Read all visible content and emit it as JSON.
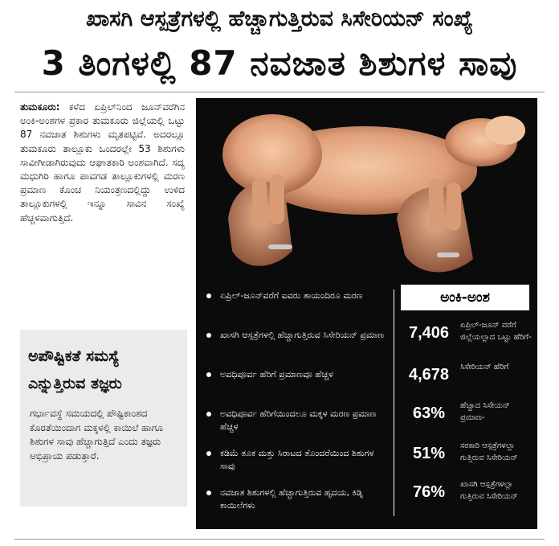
{
  "article": {
    "kicker": "ಖಾಸಗಿ ಆಸ್ಪತ್ರೆಗಳಲ್ಲಿ ಹೆಚ್ಚಾಗುತ್ತಿರುವ ಸಿಸೇರಿಯನ್ ಸಂಖ್ಯೆ",
    "headline": "3 ತಿಂಗಳಲ್ಲಿ 87 ನವಜಾತ ಶಿಶುಗಳ ಸಾವು",
    "dateline": "ತುಮಕೂರು:",
    "lead": "ಕಳೆದ ಏಪ್ರಿಲ್‌ನಿಂದ ಜೂನ್‌ವರೆಗಿನ ಅಂಕಿ-ಅಂಶಗಳ ಪ್ರಕಾರ ತುಮಕೂರು ಜಿಲ್ಲೆಯಲ್ಲಿ ಒಟ್ಟು 87 ನವಜಾತ ಶಿಶುಗಳು ಮೃತಪಟ್ಟಿವೆ. ಅದರಲ್ಲೂ ತುಮಕೂರು ತಾಲ್ಲೂಕು ಒಂದರಲ್ಲೇ 53 ಶಿಶುಗಳು ಸಾವೀಗೀಡಾಗಿರುವುದು ಆಘಾತಕಾರಿ ಅಂಶವಾಗಿದೆ. ಸದ್ಯ ಮಧುಗಿರಿ ಹಾಗೂ ಪಾವಗಡ ತಾಲ್ಲೂಕುಗಳಲ್ಲಿ ಮರಣ ಪ್ರಮಾಣ ಕೊಂಚ ನಿಯಂತ್ರಣದಲ್ಲಿದ್ದು ಉಳಿದ ತಾಲ್ಲೂಕುಗಳಲ್ಲಿ ಇನ್ನೂ ಸಾವಿನ ಸಂಖ್ಯೆ ಹೆಚ್ಚಳವಾಗುತ್ತಿದೆ."
  },
  "sidebar": {
    "title": "ಅಪೌಷ್ಟಿಕತೆ ಸಮಸ್ಯೆ ಎನ್ನುತ್ತಿರುವ ತಜ್ಞರು",
    "text": "ಗರ್ಭಾವಸ್ಥೆ ಸಮಯದಲ್ಲಿ ಪೌಷ್ಟಿಕಾಂಶದ ಕೊರತೆಯಿಂದಾಗ ಮಕ್ಕಳಲ್ಲಿ ಕಾಯಿಲೆ ಹಾಗೂ ಶಿಶುಗಳ ಸಾವು ಹೆಚ್ಚಾಗುತ್ತಿದೆ ಎಂದು ತಜ್ಞರು ಅಭಿಪ್ರಾಯ ಪಡುತ್ತಾರೆ."
  },
  "bullets": [
    "ಏಪ್ರಿಲ್-ಜೂನ್‌ವರೆಗೆ ಐವರು ತಾಯಂದಿರೂ ಮರಣ",
    "ಖಾಸಗಿ ಆಸ್ಪತ್ರೆಗಳಲ್ಲಿ ಹೆಚ್ಚಾಗುತ್ತಿರುವ ಸಿಸೇರಿಯನ್ ಪ್ರಮಾಣ",
    "ಅವಧಿಪೂರ್ವ ಹೆರಿಗೆ ಪ್ರಮಾಣವೂ ಹೆಚ್ಚಳ",
    "ಅವಧಿಪೂರ್ವ ಹೆರಿಗೆಯಿಂದಲೂ ಮಕ್ಕಳ ಮರಣ ಪ್ರಮಾಣ ಹೆಚ್ಚಳ",
    "ಕಡಿಮೆ ತೂಕ ಮತ್ತು ಸಿರಾಟದ ತೊಂದರೆಯಿಂದ ಶಿಶುಗಳ ಸಾವು",
    "ನವಜಾತ ಶಿಶುಗಳಲ್ಲಿ ಹೆಚ್ಚಾಗುತ್ತಿರುವ ಹೃದಯ, ಕಿಡ್ನಿ ಕಾಯಿಲೆಗಳು"
  ],
  "stats": {
    "title": "ಅಂಕಿ-ಅಂಶ",
    "items": [
      {
        "value": "7,406",
        "label": "ಏಪ್ರಿಲ್-ಜೂನ್ ವರೆಗೆ ಜಿಲ್ಲೆಯಲ್ಲಾದ ಒಟ್ಟು ಹೆರಿಗೆ-"
      },
      {
        "value": "4,678",
        "label": "ಸಿಸೇರಿಯನ್ ಹೆರಿಗೆ"
      },
      {
        "value": "63%",
        "label": "ಹೆಚ್ಚಾದ ಸಿಸೇಯನ್ ಪ್ರಮಾಣ-"
      },
      {
        "value": "51%",
        "label": "ಸರಕಾರಿ ಆಸ್ಪತ್ರೆಗಳಲ್ಲಾ ಗುತ್ತಿರುವ ಸಿಸೇರಿಯನ್"
      },
      {
        "value": "76%",
        "label": "ಖಾಸಗಿ ಆಸ್ಪತ್ರೆಗಳಲ್ಲಾ ಗುತ್ತಿರುವ ಸಿಸೇರಿಯನ್"
      }
    ]
  }
}
